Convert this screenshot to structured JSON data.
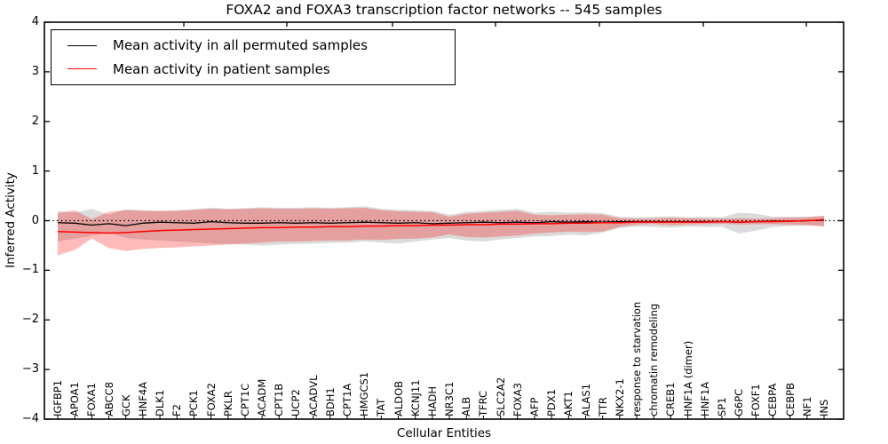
{
  "figure": {
    "title": "FOXA2 and FOXA3 transcription factor networks -- 545 samples",
    "xlabel": "Cellular Entities",
    "ylabel": "Inferred Activity"
  },
  "legend": {
    "items": [
      {
        "label": "Mean activity in all permuted samples",
        "color": "#000000"
      },
      {
        "label": "Mean activity in patient samples",
        "color": "#ff0000"
      }
    ]
  },
  "colors": {
    "permuted_line": "#000000",
    "patient_line": "#ff0000",
    "permuted_band": "rgba(0,0,0,0.14)",
    "patient_band": "rgba(255,0,0,0.27)",
    "axes": "#000000",
    "background": "#ffffff"
  },
  "chart_data": {
    "type": "line",
    "title": "FOXA2 and FOXA3 transcription factor networks -- 545 samples",
    "xlabel": "Cellular Entities",
    "ylabel": "Inferred Activity",
    "ylim": [
      -4,
      4
    ],
    "ytick_values": [
      4,
      3,
      2,
      1,
      0,
      -1,
      -2,
      -3,
      -4
    ],
    "ytick_labels": [
      "4",
      "3",
      "2",
      "1",
      "0",
      "−1",
      "−2",
      "−3",
      "−4"
    ],
    "grid": false,
    "legend_position": "upper left",
    "zero_reference_line": 0,
    "categories": [
      "IGFBP1",
      "APOA1",
      "FOXA1",
      "ABCC8",
      "GCK",
      "HNF4A",
      "DLK1",
      "F2",
      "PCK1",
      "FOXA2",
      "PKLR",
      "CPT1C",
      "ACADM",
      "CPT1B",
      "UCP2",
      "ACADVL",
      "BDH1",
      "CPT1A",
      "HMGCS1",
      "TAT",
      "ALDOB",
      "KCNJ11",
      "HADH",
      "NR3C1",
      "ALB",
      "TFRC",
      "SLC2A2",
      "FOXA3",
      "AFP",
      "PDX1",
      "AKT1",
      "ALAS1",
      "TTR",
      "NKX2-1",
      "response to starvation",
      "chromatin remodeling",
      "CREB1",
      "HNF1A (dimer)",
      "HNF1A",
      "SP1",
      "G6PC",
      "FOXF1",
      "CEBPA",
      "CEBPB",
      "NF1",
      "INS"
    ],
    "series": [
      {
        "name": "Mean activity in all permuted samples",
        "color": "#000000",
        "values": [
          -0.04,
          -0.05,
          -0.09,
          -0.06,
          -0.1,
          -0.05,
          -0.03,
          -0.04,
          -0.05,
          -0.02,
          -0.04,
          -0.05,
          -0.05,
          -0.04,
          -0.05,
          -0.04,
          -0.05,
          -0.04,
          -0.03,
          -0.04,
          -0.05,
          -0.04,
          -0.06,
          -0.05,
          -0.04,
          -0.03,
          -0.04,
          -0.03,
          -0.04,
          -0.02,
          -0.03,
          -0.02,
          -0.03,
          -0.02,
          -0.02,
          -0.02,
          -0.02,
          -0.02,
          -0.02,
          -0.02,
          -0.03,
          -0.02,
          -0.01,
          -0.01,
          0.0,
          0.01
        ]
      },
      {
        "name": "Mean activity in patient samples",
        "color": "#ff0000",
        "values": [
          -0.22,
          -0.23,
          -0.24,
          -0.25,
          -0.24,
          -0.22,
          -0.2,
          -0.19,
          -0.18,
          -0.17,
          -0.16,
          -0.15,
          -0.14,
          -0.14,
          -0.13,
          -0.13,
          -0.12,
          -0.12,
          -0.11,
          -0.11,
          -0.1,
          -0.1,
          -0.09,
          -0.09,
          -0.08,
          -0.08,
          -0.07,
          -0.07,
          -0.06,
          -0.06,
          -0.05,
          -0.05,
          -0.04,
          -0.04,
          -0.03,
          -0.03,
          -0.03,
          -0.03,
          -0.03,
          -0.02,
          -0.03,
          -0.02,
          -0.02,
          -0.01,
          0.0,
          0.02
        ]
      }
    ],
    "bands": [
      {
        "name": "permuted samples range",
        "color": "rgba(0,0,0,0.14)",
        "upper": [
          0.2,
          0.16,
          0.24,
          0.12,
          0.23,
          0.21,
          0.2,
          0.21,
          0.23,
          0.26,
          0.24,
          0.25,
          0.27,
          0.26,
          0.26,
          0.27,
          0.26,
          0.27,
          0.29,
          0.24,
          0.22,
          0.21,
          0.2,
          0.12,
          0.18,
          0.2,
          0.22,
          0.24,
          0.16,
          0.18,
          0.16,
          0.17,
          0.15,
          0.08,
          0.07,
          0.08,
          0.09,
          0.07,
          0.08,
          0.07,
          0.16,
          0.14,
          0.08,
          0.08,
          0.08,
          0.09
        ],
        "lower": [
          -0.42,
          -0.36,
          -0.3,
          -0.24,
          -0.35,
          -0.38,
          -0.4,
          -0.42,
          -0.44,
          -0.46,
          -0.47,
          -0.48,
          -0.5,
          -0.48,
          -0.47,
          -0.46,
          -0.45,
          -0.44,
          -0.42,
          -0.44,
          -0.46,
          -0.42,
          -0.38,
          -0.35,
          -0.4,
          -0.42,
          -0.38,
          -0.35,
          -0.32,
          -0.31,
          -0.28,
          -0.3,
          -0.24,
          -0.15,
          -0.12,
          -0.13,
          -0.14,
          -0.12,
          -0.13,
          -0.12,
          -0.26,
          -0.2,
          -0.13,
          -0.11,
          -0.1,
          -0.1
        ]
      },
      {
        "name": "patient samples range",
        "color": "rgba(255,0,0,0.27)",
        "upper": [
          0.15,
          0.21,
          0.03,
          0.18,
          0.21,
          0.2,
          0.19,
          0.2,
          0.22,
          0.24,
          0.23,
          0.24,
          0.25,
          0.24,
          0.24,
          0.25,
          0.24,
          0.25,
          0.26,
          0.21,
          0.19,
          0.18,
          0.17,
          0.08,
          0.14,
          0.16,
          0.18,
          0.2,
          0.12,
          0.11,
          0.12,
          0.13,
          0.12,
          0.05,
          0.04,
          0.04,
          0.06,
          0.05,
          0.04,
          0.04,
          0.05,
          0.04,
          0.05,
          0.06,
          0.07,
          0.1
        ],
        "lower": [
          -0.7,
          -0.59,
          -0.36,
          -0.55,
          -0.61,
          -0.57,
          -0.55,
          -0.54,
          -0.52,
          -0.5,
          -0.48,
          -0.46,
          -0.44,
          -0.42,
          -0.42,
          -0.41,
          -0.4,
          -0.4,
          -0.38,
          -0.39,
          -0.37,
          -0.36,
          -0.34,
          -0.28,
          -0.33,
          -0.34,
          -0.32,
          -0.3,
          -0.26,
          -0.24,
          -0.22,
          -0.23,
          -0.22,
          -0.12,
          -0.08,
          -0.07,
          -0.09,
          -0.08,
          -0.07,
          -0.06,
          -0.08,
          -0.07,
          -0.07,
          -0.08,
          -0.09,
          -0.12
        ]
      }
    ]
  }
}
